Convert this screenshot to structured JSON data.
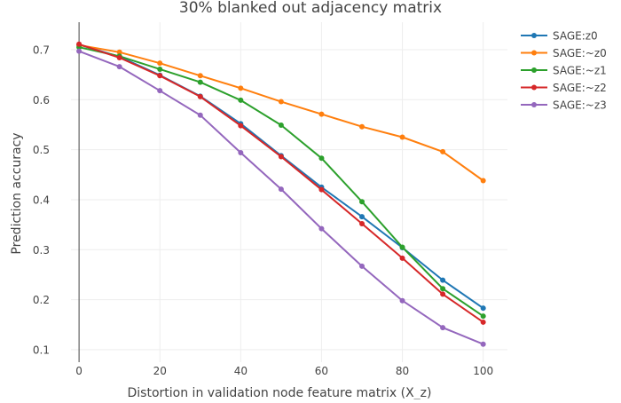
{
  "chart_data": {
    "type": "line",
    "title": "30% blanked out adjacency matrix",
    "xlabel": "Distortion in validation node feature matrix (X_z)",
    "ylabel": "Prediction accuracy",
    "xlim": [
      -2,
      106
    ],
    "ylim": [
      0.075,
      0.755
    ],
    "xticks": [
      0,
      20,
      40,
      60,
      80,
      100
    ],
    "yticks": [
      0.1,
      0.2,
      0.3,
      0.4,
      0.5,
      0.6,
      0.7
    ],
    "ytick_labels": [
      "0.1",
      "0.2",
      "0.3",
      "0.4",
      "0.5",
      "0.6",
      "0.7"
    ],
    "grid": true,
    "legend_position": "top-right",
    "x": [
      0,
      10,
      20,
      30,
      40,
      50,
      60,
      70,
      80,
      90,
      100
    ],
    "series": [
      {
        "name": "SAGE:z0",
        "color": "#1f77b4",
        "values": [
          0.71,
          0.686,
          0.649,
          0.607,
          0.552,
          0.488,
          0.425,
          0.366,
          0.304,
          0.239,
          0.183
        ]
      },
      {
        "name": "SAGE:~z0",
        "color": "#ff7f0e",
        "values": [
          0.709,
          0.695,
          0.673,
          0.648,
          0.623,
          0.596,
          0.571,
          0.546,
          0.525,
          0.496,
          0.438
        ]
      },
      {
        "name": "SAGE:~z1",
        "color": "#2ca02c",
        "values": [
          0.705,
          0.687,
          0.661,
          0.635,
          0.599,
          0.549,
          0.483,
          0.396,
          0.305,
          0.222,
          0.167
        ]
      },
      {
        "name": "SAGE:~z2",
        "color": "#d62728",
        "values": [
          0.711,
          0.684,
          0.648,
          0.606,
          0.548,
          0.486,
          0.42,
          0.352,
          0.283,
          0.211,
          0.155
        ]
      },
      {
        "name": "SAGE:~z3",
        "color": "#9467bd",
        "values": [
          0.697,
          0.666,
          0.618,
          0.569,
          0.494,
          0.421,
          0.342,
          0.267,
          0.198,
          0.144,
          0.111
        ]
      }
    ]
  }
}
